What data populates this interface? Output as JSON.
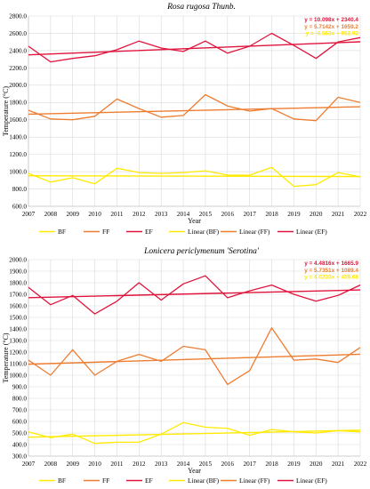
{
  "chart_data": [
    {
      "type": "line",
      "title": "Rosa rugosa Thunb.",
      "xlabel": "Year",
      "ylabel": "Temperature (°C)",
      "ylim": [
        600,
        2800
      ],
      "yticks": [
        "600.0",
        "800.0",
        "1000.0",
        "1200.0",
        "1400.0",
        "1600.0",
        "1800.0",
        "2000.0",
        "2200.0",
        "2400.0",
        "2600.0",
        "2800.0"
      ],
      "x": [
        "2007",
        "2008",
        "2009",
        "2010",
        "2011",
        "2012",
        "2013",
        "2014",
        "2015",
        "2016",
        "2017",
        "2018",
        "2019",
        "2020",
        "2021",
        "2022"
      ],
      "grid": true,
      "legend_position": "bottom",
      "series": [
        {
          "name": "BF",
          "color": "#ffea00",
          "values": [
            980,
            880,
            930,
            860,
            1040,
            990,
            980,
            990,
            1010,
            960,
            960,
            1050,
            830,
            850,
            990,
            940
          ]
        },
        {
          "name": "FF",
          "color": "#ed7d31",
          "values": [
            1710,
            1610,
            1600,
            1640,
            1840,
            1730,
            1630,
            1650,
            1890,
            1760,
            1700,
            1730,
            1610,
            1590,
            1860,
            1800
          ]
        },
        {
          "name": "EF",
          "color": "#e0143c",
          "values": [
            2450,
            2270,
            2310,
            2340,
            2410,
            2510,
            2430,
            2390,
            2510,
            2370,
            2450,
            2600,
            2460,
            2310,
            2500,
            2550
          ]
        }
      ],
      "trendlines": [
        {
          "name": "Linear (BF)",
          "color": "#ffea00",
          "slope": -0.563,
          "intercept": 952.92,
          "equation": "y = -0.563x + 952.92"
        },
        {
          "name": "Linear (FF)",
          "color": "#ed7d31",
          "slope": 5.7142,
          "intercept": 1659.2,
          "equation": "y = 5.7142x + 1659.2"
        },
        {
          "name": "Linear (EF)",
          "color": "#e0143c",
          "slope": 10.098,
          "intercept": 2340.4,
          "equation": "y = 10.098x + 2340.4"
        }
      ]
    },
    {
      "type": "line",
      "title": "Lonicera periclymenum 'Serotina'",
      "xlabel": "Year",
      "ylabel": "Temperature (°C)",
      "ylim": [
        300,
        2000
      ],
      "yticks": [
        "300.0",
        "400.0",
        "500.0",
        "600.0",
        "700.0",
        "800.0",
        "900.0",
        "1000.0",
        "1100.0",
        "1200.0",
        "1300.0",
        "1400.0",
        "1500.0",
        "1600.0",
        "1700.0",
        "1800.0",
        "1900.0",
        "2000.0"
      ],
      "x": [
        "2007",
        "2008",
        "2009",
        "2010",
        "2011",
        "2012",
        "2013",
        "2014",
        "2015",
        "2016",
        "2017",
        "2018",
        "2019",
        "2020",
        "2021",
        "2022"
      ],
      "grid": true,
      "legend_position": "bottom",
      "series": [
        {
          "name": "BF",
          "color": "#ffea00",
          "values": [
            510,
            460,
            490,
            410,
            420,
            420,
            490,
            590,
            550,
            540,
            480,
            530,
            510,
            500,
            520,
            510
          ]
        },
        {
          "name": "FF",
          "color": "#ed7d31",
          "values": [
            1130,
            1000,
            1220,
            1000,
            1120,
            1180,
            1120,
            1250,
            1220,
            920,
            1040,
            1410,
            1130,
            1140,
            1110,
            1240
          ]
        },
        {
          "name": "EF",
          "color": "#e0143c",
          "values": [
            1760,
            1610,
            1690,
            1530,
            1640,
            1800,
            1650,
            1790,
            1860,
            1670,
            1730,
            1780,
            1700,
            1640,
            1690,
            1780
          ]
        }
      ],
      "trendlines": [
        {
          "name": "Linear (BF)",
          "color": "#ffea00",
          "slope": 4.0233,
          "intercept": 459.68,
          "equation": "y = 4.0233x + 459.68"
        },
        {
          "name": "Linear (FF)",
          "color": "#ed7d31",
          "slope": 5.7351,
          "intercept": 1089.4,
          "equation": "y = 5.7351x + 1089.4"
        },
        {
          "name": "Linear (EF)",
          "color": "#e0143c",
          "slope": 4.4816,
          "intercept": 1665.9,
          "equation": "y = 4.4816x + 1665.9"
        }
      ]
    }
  ]
}
